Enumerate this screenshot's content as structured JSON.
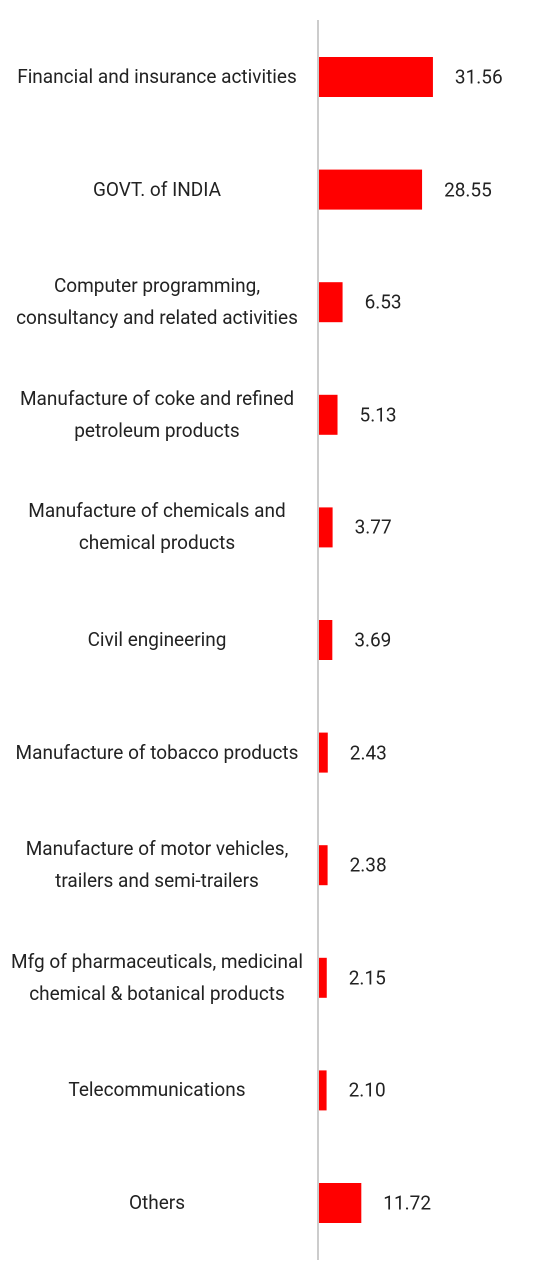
{
  "chart_data": {
    "type": "bar",
    "orientation": "horizontal",
    "categories": [
      "Financial and insurance activities",
      "GOVT. of INDIA",
      "Computer programming, consultancy and related activities",
      "Manufacture of coke and refined petroleum products",
      "Manufacture of chemicals and chemical products",
      "Civil engineering",
      "Manufacture of tobacco products",
      "Manufacture of motor vehicles, trailers and semi-trailers",
      "Mfg of pharmaceuticals, medicinal chemical & botanical products",
      "Telecommunications",
      "Others"
    ],
    "values": [
      31.56,
      28.55,
      6.53,
      5.13,
      3.77,
      3.69,
      2.43,
      2.38,
      2.15,
      2.1,
      11.72
    ],
    "value_labels": [
      "31.56",
      "28.55",
      "6.53",
      "5.13",
      "3.77",
      "3.69",
      "2.43",
      "2.38",
      "2.15",
      "2.10",
      "11.72"
    ],
    "color": "#ff0000"
  }
}
